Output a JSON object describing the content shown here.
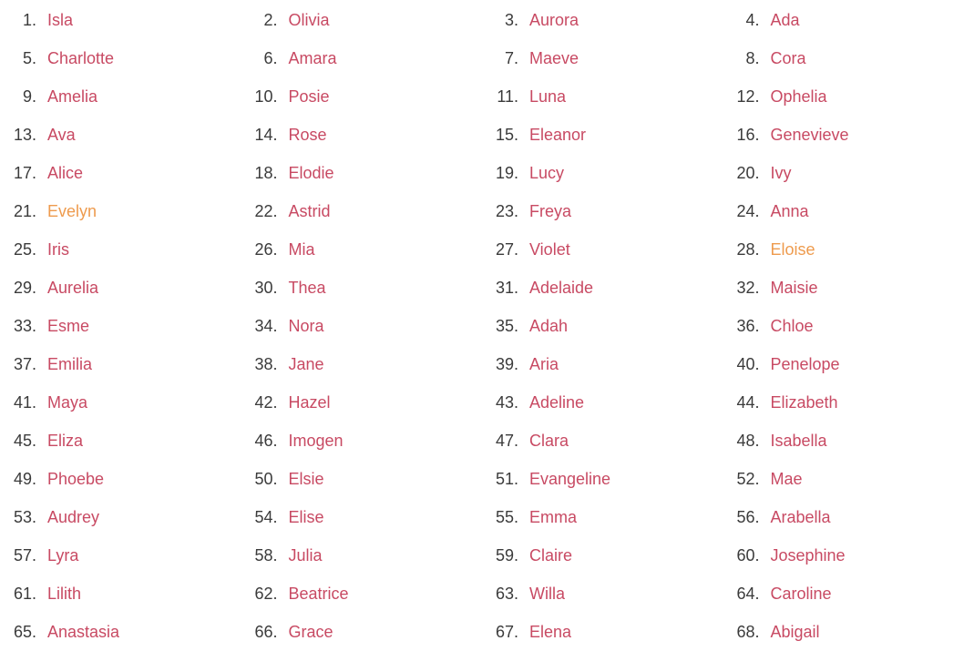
{
  "colors": {
    "background": "#ffffff",
    "link": "#c84a63",
    "link_visited": "#ee9b4e",
    "rank_number": "#3b3b3b"
  },
  "list": {
    "columns": 4,
    "items": [
      {
        "rank": 1,
        "name": "Isla",
        "visited": false
      },
      {
        "rank": 2,
        "name": "Olivia",
        "visited": false
      },
      {
        "rank": 3,
        "name": "Aurora",
        "visited": false
      },
      {
        "rank": 4,
        "name": "Ada",
        "visited": false
      },
      {
        "rank": 5,
        "name": "Charlotte",
        "visited": false
      },
      {
        "rank": 6,
        "name": "Amara",
        "visited": false
      },
      {
        "rank": 7,
        "name": "Maeve",
        "visited": false
      },
      {
        "rank": 8,
        "name": "Cora",
        "visited": false
      },
      {
        "rank": 9,
        "name": "Amelia",
        "visited": false
      },
      {
        "rank": 10,
        "name": "Posie",
        "visited": false
      },
      {
        "rank": 11,
        "name": "Luna",
        "visited": false
      },
      {
        "rank": 12,
        "name": "Ophelia",
        "visited": false
      },
      {
        "rank": 13,
        "name": "Ava",
        "visited": false
      },
      {
        "rank": 14,
        "name": "Rose",
        "visited": false
      },
      {
        "rank": 15,
        "name": "Eleanor",
        "visited": false
      },
      {
        "rank": 16,
        "name": "Genevieve",
        "visited": false
      },
      {
        "rank": 17,
        "name": "Alice",
        "visited": false
      },
      {
        "rank": 18,
        "name": "Elodie",
        "visited": false
      },
      {
        "rank": 19,
        "name": "Lucy",
        "visited": false
      },
      {
        "rank": 20,
        "name": "Ivy",
        "visited": false
      },
      {
        "rank": 21,
        "name": "Evelyn",
        "visited": true
      },
      {
        "rank": 22,
        "name": "Astrid",
        "visited": false
      },
      {
        "rank": 23,
        "name": "Freya",
        "visited": false
      },
      {
        "rank": 24,
        "name": "Anna",
        "visited": false
      },
      {
        "rank": 25,
        "name": "Iris",
        "visited": false
      },
      {
        "rank": 26,
        "name": "Mia",
        "visited": false
      },
      {
        "rank": 27,
        "name": "Violet",
        "visited": false
      },
      {
        "rank": 28,
        "name": "Eloise",
        "visited": true
      },
      {
        "rank": 29,
        "name": "Aurelia",
        "visited": false
      },
      {
        "rank": 30,
        "name": "Thea",
        "visited": false
      },
      {
        "rank": 31,
        "name": "Adelaide",
        "visited": false
      },
      {
        "rank": 32,
        "name": "Maisie",
        "visited": false
      },
      {
        "rank": 33,
        "name": "Esme",
        "visited": false
      },
      {
        "rank": 34,
        "name": "Nora",
        "visited": false
      },
      {
        "rank": 35,
        "name": "Adah",
        "visited": false
      },
      {
        "rank": 36,
        "name": "Chloe",
        "visited": false
      },
      {
        "rank": 37,
        "name": "Emilia",
        "visited": false
      },
      {
        "rank": 38,
        "name": "Jane",
        "visited": false
      },
      {
        "rank": 39,
        "name": "Aria",
        "visited": false
      },
      {
        "rank": 40,
        "name": "Penelope",
        "visited": false
      },
      {
        "rank": 41,
        "name": "Maya",
        "visited": false
      },
      {
        "rank": 42,
        "name": "Hazel",
        "visited": false
      },
      {
        "rank": 43,
        "name": "Adeline",
        "visited": false
      },
      {
        "rank": 44,
        "name": "Elizabeth",
        "visited": false
      },
      {
        "rank": 45,
        "name": "Eliza",
        "visited": false
      },
      {
        "rank": 46,
        "name": "Imogen",
        "visited": false
      },
      {
        "rank": 47,
        "name": "Clara",
        "visited": false
      },
      {
        "rank": 48,
        "name": "Isabella",
        "visited": false
      },
      {
        "rank": 49,
        "name": "Phoebe",
        "visited": false
      },
      {
        "rank": 50,
        "name": "Elsie",
        "visited": false
      },
      {
        "rank": 51,
        "name": "Evangeline",
        "visited": false
      },
      {
        "rank": 52,
        "name": "Mae",
        "visited": false
      },
      {
        "rank": 53,
        "name": "Audrey",
        "visited": false
      },
      {
        "rank": 54,
        "name": "Elise",
        "visited": false
      },
      {
        "rank": 55,
        "name": "Emma",
        "visited": false
      },
      {
        "rank": 56,
        "name": "Arabella",
        "visited": false
      },
      {
        "rank": 57,
        "name": "Lyra",
        "visited": false
      },
      {
        "rank": 58,
        "name": "Julia",
        "visited": false
      },
      {
        "rank": 59,
        "name": "Claire",
        "visited": false
      },
      {
        "rank": 60,
        "name": "Josephine",
        "visited": false
      },
      {
        "rank": 61,
        "name": "Lilith",
        "visited": false
      },
      {
        "rank": 62,
        "name": "Beatrice",
        "visited": false
      },
      {
        "rank": 63,
        "name": "Willa",
        "visited": false
      },
      {
        "rank": 64,
        "name": "Caroline",
        "visited": false
      },
      {
        "rank": 65,
        "name": "Anastasia",
        "visited": false
      },
      {
        "rank": 66,
        "name": "Grace",
        "visited": false
      },
      {
        "rank": 67,
        "name": "Elena",
        "visited": false
      },
      {
        "rank": 68,
        "name": "Abigail",
        "visited": false
      }
    ]
  }
}
